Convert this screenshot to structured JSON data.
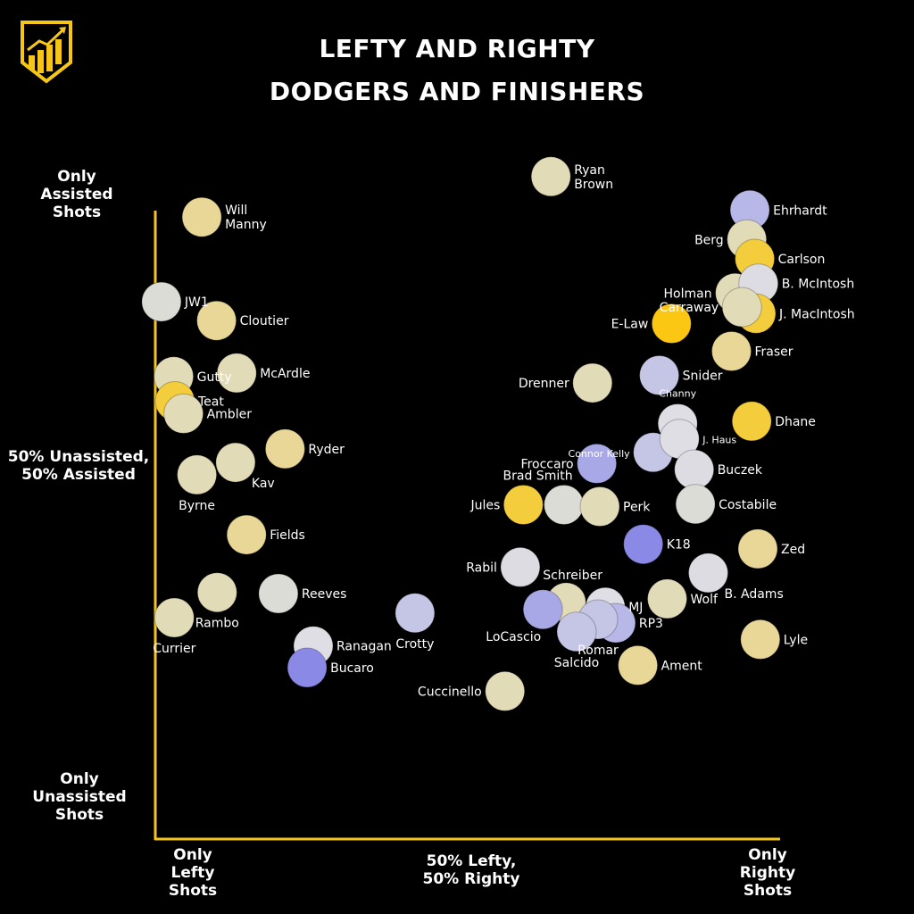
{
  "header": {
    "title_line1": "LEFTY AND RIGHTY",
    "title_line2": "DODGERS AND FINISHERS"
  },
  "brand": {
    "logo_icon": "rising-chart-bars-icon",
    "accent_color": "#f5c518"
  },
  "axes": {
    "y_top_1": "Only",
    "y_top_2": "Assisted",
    "y_top_3": "Shots",
    "y_mid_1": "50% Unassisted,",
    "y_mid_2": "50% Assisted",
    "y_bot_1": "Only",
    "y_bot_2": "Unassisted",
    "y_bot_3": "Shots",
    "x_left_1": "Only",
    "x_left_2": "Lefty",
    "x_left_3": "Shots",
    "x_mid_1": "50% Lefty,",
    "x_mid_2": "50% Righty",
    "x_right_1": "Only",
    "x_right_2": "Righty",
    "x_right_3": "Shots"
  },
  "chart_data": {
    "type": "scatter",
    "x_axis": "share of shots taken righty (0 = only lefty, 0.5 = 50% lefty / 50% righty, 1 = only righty)",
    "y_axis": "share of shots assisted (0 = only unassisted, 0.5 = 50/50, 1 = only assisted)",
    "xlim": [
      0,
      1
    ],
    "ylim": [
      0,
      1
    ],
    "palette": {
      "gold": "#f3cd3c",
      "bright_gold": "#fcc713",
      "tan": "#e8d796",
      "beige": "#e2dbb8",
      "grey": "#dcdcd6",
      "light_grey": "#dedee4",
      "lavender": "#c5c5e6",
      "periwinkle": "#a8a8e6",
      "blue": "#8a8ae6"
    },
    "points": [
      {
        "label": "Ryan Brown",
        "x": 0.646,
        "y": 1.058,
        "color": "#e2dbb8",
        "label_side": "right"
      },
      {
        "label": "Will Manny",
        "x": 0.076,
        "y": 0.989,
        "color": "#e8d796",
        "label_side": "right"
      },
      {
        "label": "Ehrhardt",
        "x": 0.971,
        "y": 1.001,
        "color": "#b8b8e8",
        "label_side": "right"
      },
      {
        "label": "Berg",
        "x": 0.966,
        "y": 0.951,
        "color": "#e2dbb8",
        "label_side": "left"
      },
      {
        "label": "Carlson",
        "x": 0.979,
        "y": 0.918,
        "color": "#f3cd3c",
        "label_side": "right"
      },
      {
        "label": "Holman",
        "x": 0.947,
        "y": 0.86,
        "color": "#e2dbb8",
        "label_side": "left"
      },
      {
        "label": "B. McIntosh",
        "x": 0.985,
        "y": 0.876,
        "color": "#dcdce2",
        "label_side": "right"
      },
      {
        "label": "J. MacIntosh",
        "x": 0.981,
        "y": 0.825,
        "color": "#f3cd3c",
        "label_side": "right"
      },
      {
        "label": "Carraway",
        "x": 0.958,
        "y": 0.836,
        "color": "#e2dbb8",
        "label_side": "left"
      },
      {
        "label": "E-Law",
        "x": 0.843,
        "y": 0.808,
        "color": "#fcc713",
        "label_side": "left"
      },
      {
        "label": "Fraser",
        "x": 0.941,
        "y": 0.761,
        "color": "#e8d796",
        "label_side": "right"
      },
      {
        "label": "JW1",
        "x": 0.01,
        "y": 0.845,
        "color": "#dcdcd6",
        "label_side": "right"
      },
      {
        "label": "Cloutier",
        "x": 0.1,
        "y": 0.813,
        "color": "#e8d796",
        "label_side": "right"
      },
      {
        "label": "Gutty",
        "x": 0.03,
        "y": 0.718,
        "color": "#e2dbb8",
        "label_side": "right"
      },
      {
        "label": "McArdle",
        "x": 0.133,
        "y": 0.724,
        "color": "#e2dbb8",
        "label_side": "right"
      },
      {
        "label": "Teat",
        "x": 0.032,
        "y": 0.676,
        "color": "#f3cd3c",
        "label_side": "right"
      },
      {
        "label": "Ambler",
        "x": 0.046,
        "y": 0.655,
        "color": "#e2dbb8",
        "label_side": "right"
      },
      {
        "label": "Drenner",
        "x": 0.714,
        "y": 0.707,
        "color": "#e2dbb8",
        "label_side": "left"
      },
      {
        "label": "Snider",
        "x": 0.823,
        "y": 0.72,
        "color": "#c5c5e6",
        "label_side": "right"
      },
      {
        "label": "Channy",
        "x": 0.853,
        "y": 0.638,
        "color": "#dedee4",
        "label_side": "top"
      },
      {
        "label": "Dhane",
        "x": 0.974,
        "y": 0.642,
        "color": "#f3cd3c",
        "label_side": "right"
      },
      {
        "label": "Connor Kelly",
        "x": 0.813,
        "y": 0.589,
        "color": "#c5c5e6",
        "label_side": "left"
      },
      {
        "label": "J. Haus",
        "x": 0.856,
        "y": 0.612,
        "color": "#dedee4",
        "label_side": "right"
      },
      {
        "label": "Froccaro",
        "x": 0.721,
        "y": 0.57,
        "color": "#a8a8e6",
        "label_side": "left"
      },
      {
        "label": "Buczek",
        "x": 0.88,
        "y": 0.56,
        "color": "#dcdce2",
        "label_side": "right"
      },
      {
        "label": "Ryder",
        "x": 0.212,
        "y": 0.595,
        "color": "#e8d796",
        "label_side": "right"
      },
      {
        "label": "Kav",
        "x": 0.131,
        "y": 0.572,
        "color": "#e2dbb8",
        "label_side": "bottom-right"
      },
      {
        "label": "Byrne",
        "x": 0.068,
        "y": 0.551,
        "color": "#e2dbb8",
        "label_side": "bottom"
      },
      {
        "label": "Brad Smith",
        "x": 0.667,
        "y": 0.5,
        "color": "#dcdcd6",
        "label_side": "top-left"
      },
      {
        "label": "Jules",
        "x": 0.601,
        "y": 0.5,
        "color": "#f3cd3c",
        "label_side": "left"
      },
      {
        "label": "Perk",
        "x": 0.726,
        "y": 0.497,
        "color": "#e2dbb8",
        "label_side": "right"
      },
      {
        "label": "Costabile",
        "x": 0.882,
        "y": 0.501,
        "color": "#dcdcd6",
        "label_side": "right"
      },
      {
        "label": "Fields",
        "x": 0.149,
        "y": 0.449,
        "color": "#e8d796",
        "label_side": "right"
      },
      {
        "label": "K18",
        "x": 0.797,
        "y": 0.433,
        "color": "#8a8ae6",
        "label_side": "right"
      },
      {
        "label": "Zed",
        "x": 0.984,
        "y": 0.425,
        "color": "#e8d796",
        "label_side": "right"
      },
      {
        "label": "Rabil",
        "x": 0.596,
        "y": 0.394,
        "color": "#dcdce2",
        "label_side": "left"
      },
      {
        "label": "Schreiber",
        "x": 0.671,
        "y": 0.334,
        "color": "#e2dbb8",
        "label_side": "top-right"
      },
      {
        "label": "B. Adams",
        "x": 0.903,
        "y": 0.384,
        "color": "#dcdce2",
        "label_side": "bottom-right"
      },
      {
        "label": "Rambo",
        "x": 0.101,
        "y": 0.351,
        "color": "#e2dbb8",
        "label_side": "bottom"
      },
      {
        "label": "Reeves",
        "x": 0.201,
        "y": 0.349,
        "color": "#dcdcd6",
        "label_side": "right"
      },
      {
        "label": "Currier",
        "x": 0.031,
        "y": 0.308,
        "color": "#e2dbb8",
        "label_side": "bottom"
      },
      {
        "label": "Crotty",
        "x": 0.424,
        "y": 0.316,
        "color": "#c5c5e6",
        "label_side": "bottom"
      },
      {
        "label": "MJ",
        "x": 0.735,
        "y": 0.326,
        "color": "#dedee4",
        "label_side": "right"
      },
      {
        "label": "Wolf",
        "x": 0.836,
        "y": 0.34,
        "color": "#e2dbb8",
        "label_side": "right"
      },
      {
        "label": "LoCascio",
        "x": 0.633,
        "y": 0.322,
        "color": "#a8a8e6",
        "label_side": "bottom-left"
      },
      {
        "label": "RP3",
        "x": 0.752,
        "y": 0.299,
        "color": "#b8b8e8",
        "label_side": "right"
      },
      {
        "label": "Romar",
        "x": 0.723,
        "y": 0.305,
        "color": "#c5c5e6",
        "label_side": "bottom"
      },
      {
        "label": "Salcido",
        "x": 0.688,
        "y": 0.284,
        "color": "#c5c5e6",
        "label_side": "bottom"
      },
      {
        "label": "Ranagan",
        "x": 0.258,
        "y": 0.26,
        "color": "#dedee4",
        "label_side": "right"
      },
      {
        "label": "Lyle",
        "x": 0.988,
        "y": 0.271,
        "color": "#e8d796",
        "label_side": "right"
      },
      {
        "label": "Bucaro",
        "x": 0.248,
        "y": 0.223,
        "color": "#8a8ae6",
        "label_side": "right"
      },
      {
        "label": "Ament",
        "x": 0.788,
        "y": 0.227,
        "color": "#e8d796",
        "label_side": "right"
      },
      {
        "label": "Cuccinello",
        "x": 0.571,
        "y": 0.183,
        "color": "#e2dbb8",
        "label_side": "left"
      }
    ]
  }
}
